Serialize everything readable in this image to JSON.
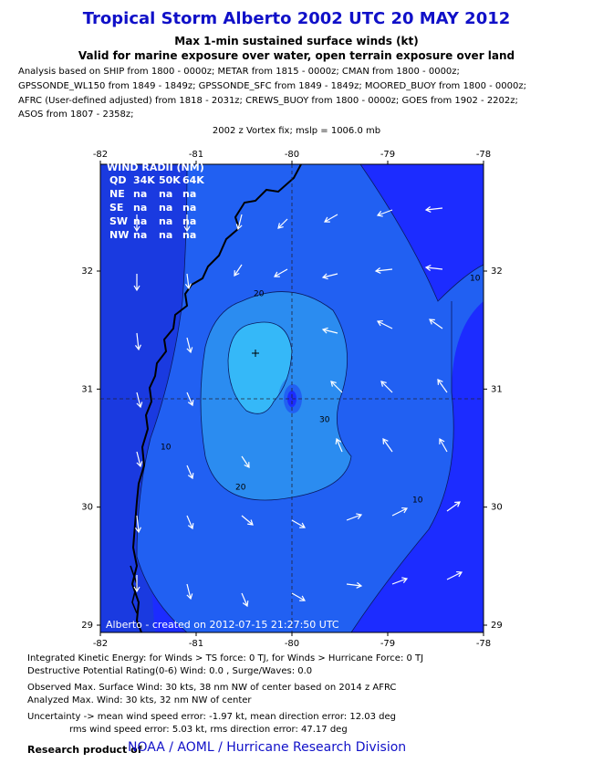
{
  "header": {
    "title": "Tropical Storm Alberto 2002 UTC 20 MAY 2012",
    "subtitle": "Max 1-min sustained surface winds (kt)",
    "exposure": "Valid for marine exposure over water, open terrain exposure over land",
    "analysis_lines": [
      "Analysis based on SHIP from 1800 - 0000z; METAR from 1815 - 0000z; CMAN from 1800 - 0000z;",
      "GPSSONDE_WL150 from 1849 - 1849z; GPSSONDE_SFC from 1849 - 1849z; MOORED_BUOY from 1800 - 0000z;",
      "AFRC (User-defined adjusted) from 1818 - 2031z; CREWS_BUOY from 1800 - 0000z; GOES from 1902 - 2202z;",
      "ASOS from 1807 - 2358z;"
    ],
    "vortex": "2002 z Vortex fix; mslp = 1006.0 mb"
  },
  "map": {
    "xticks": [
      -82,
      -81,
      -80,
      -79,
      -78
    ],
    "yticks": [
      29,
      30,
      31,
      32
    ],
    "contour_labels": [
      10,
      20,
      30,
      20,
      10,
      10
    ],
    "wind_radii": {
      "title": "WIND RADII (NM)",
      "columns": [
        "QD",
        "34K",
        "50K",
        "64K"
      ],
      "rows": [
        [
          "NE",
          "na",
          "na",
          "na"
        ],
        [
          "SE",
          "na",
          "na",
          "na"
        ],
        [
          "SW",
          "na",
          "na",
          "na"
        ],
        [
          "NW",
          "na",
          "na",
          "na"
        ]
      ]
    },
    "credit": "Alberto - created on 2012-07-15 21:27:50 UTC"
  },
  "footer": {
    "lines": [
      "Integrated Kinetic Energy: for Winds > TS force: 0 TJ, for Winds > Hurricane Force: 0 TJ",
      "Destructive Potential Rating(0-6)   Wind: 0.0 , Surge/Waves: 0.0",
      "Observed Max. Surface Wind: 30 kts, 38 nm NW of center based on 2014 z AFRC",
      "Analyzed Max. Wind: 30 kts, 32 nm  NW of center",
      "Uncertainty -> mean wind speed error:  -1.97 kt, mean direction error: 12.03 deg",
      "rms wind speed error: 5.03 kt, rms direction error: 47.17 deg"
    ],
    "research": "Research product of",
    "org": "NOAA / AOML / Hurricane Research Division"
  }
}
